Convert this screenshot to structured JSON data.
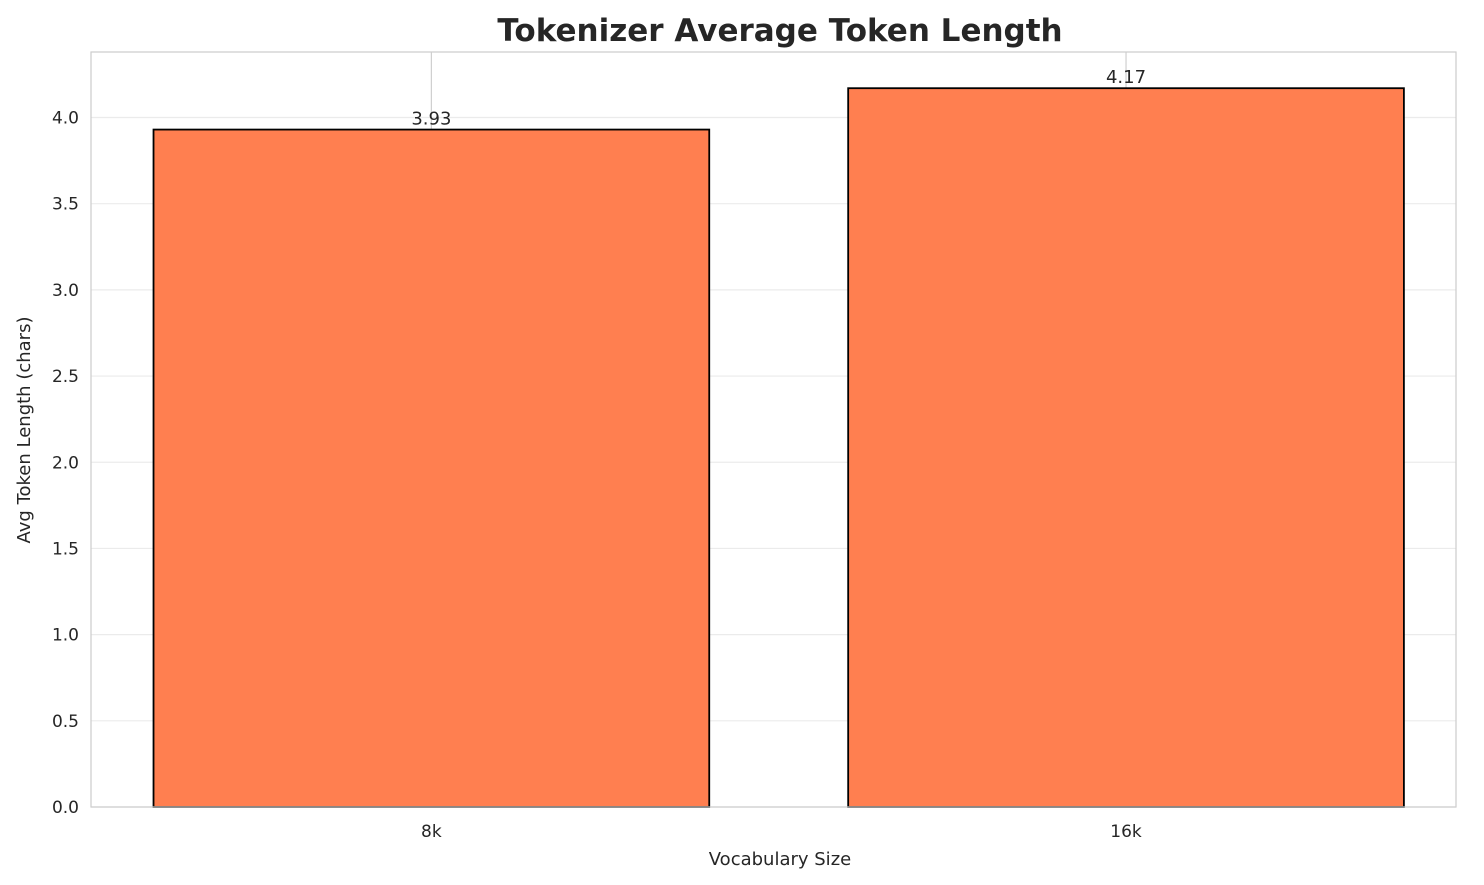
{
  "chart_data": {
    "type": "bar",
    "title": "Tokenizer Average Token Length",
    "xlabel": "Vocabulary Size",
    "ylabel": "Avg Token Length (chars)",
    "categories": [
      "8k",
      "16k"
    ],
    "values": [
      3.93,
      4.17
    ],
    "data_labels": [
      "3.93",
      "4.17"
    ],
    "ylim": [
      0,
      4.38
    ],
    "yticks": [
      0.0,
      0.5,
      1.0,
      1.5,
      2.0,
      2.5,
      3.0,
      3.5,
      4.0
    ],
    "ytick_labels": [
      "0.0",
      "0.5",
      "1.0",
      "1.5",
      "2.0",
      "2.5",
      "3.0",
      "3.5",
      "4.0"
    ],
    "grid": true,
    "colors": {
      "bar": "#FF7F50",
      "edge": "#000000",
      "grid": "#EBEBEB"
    }
  }
}
